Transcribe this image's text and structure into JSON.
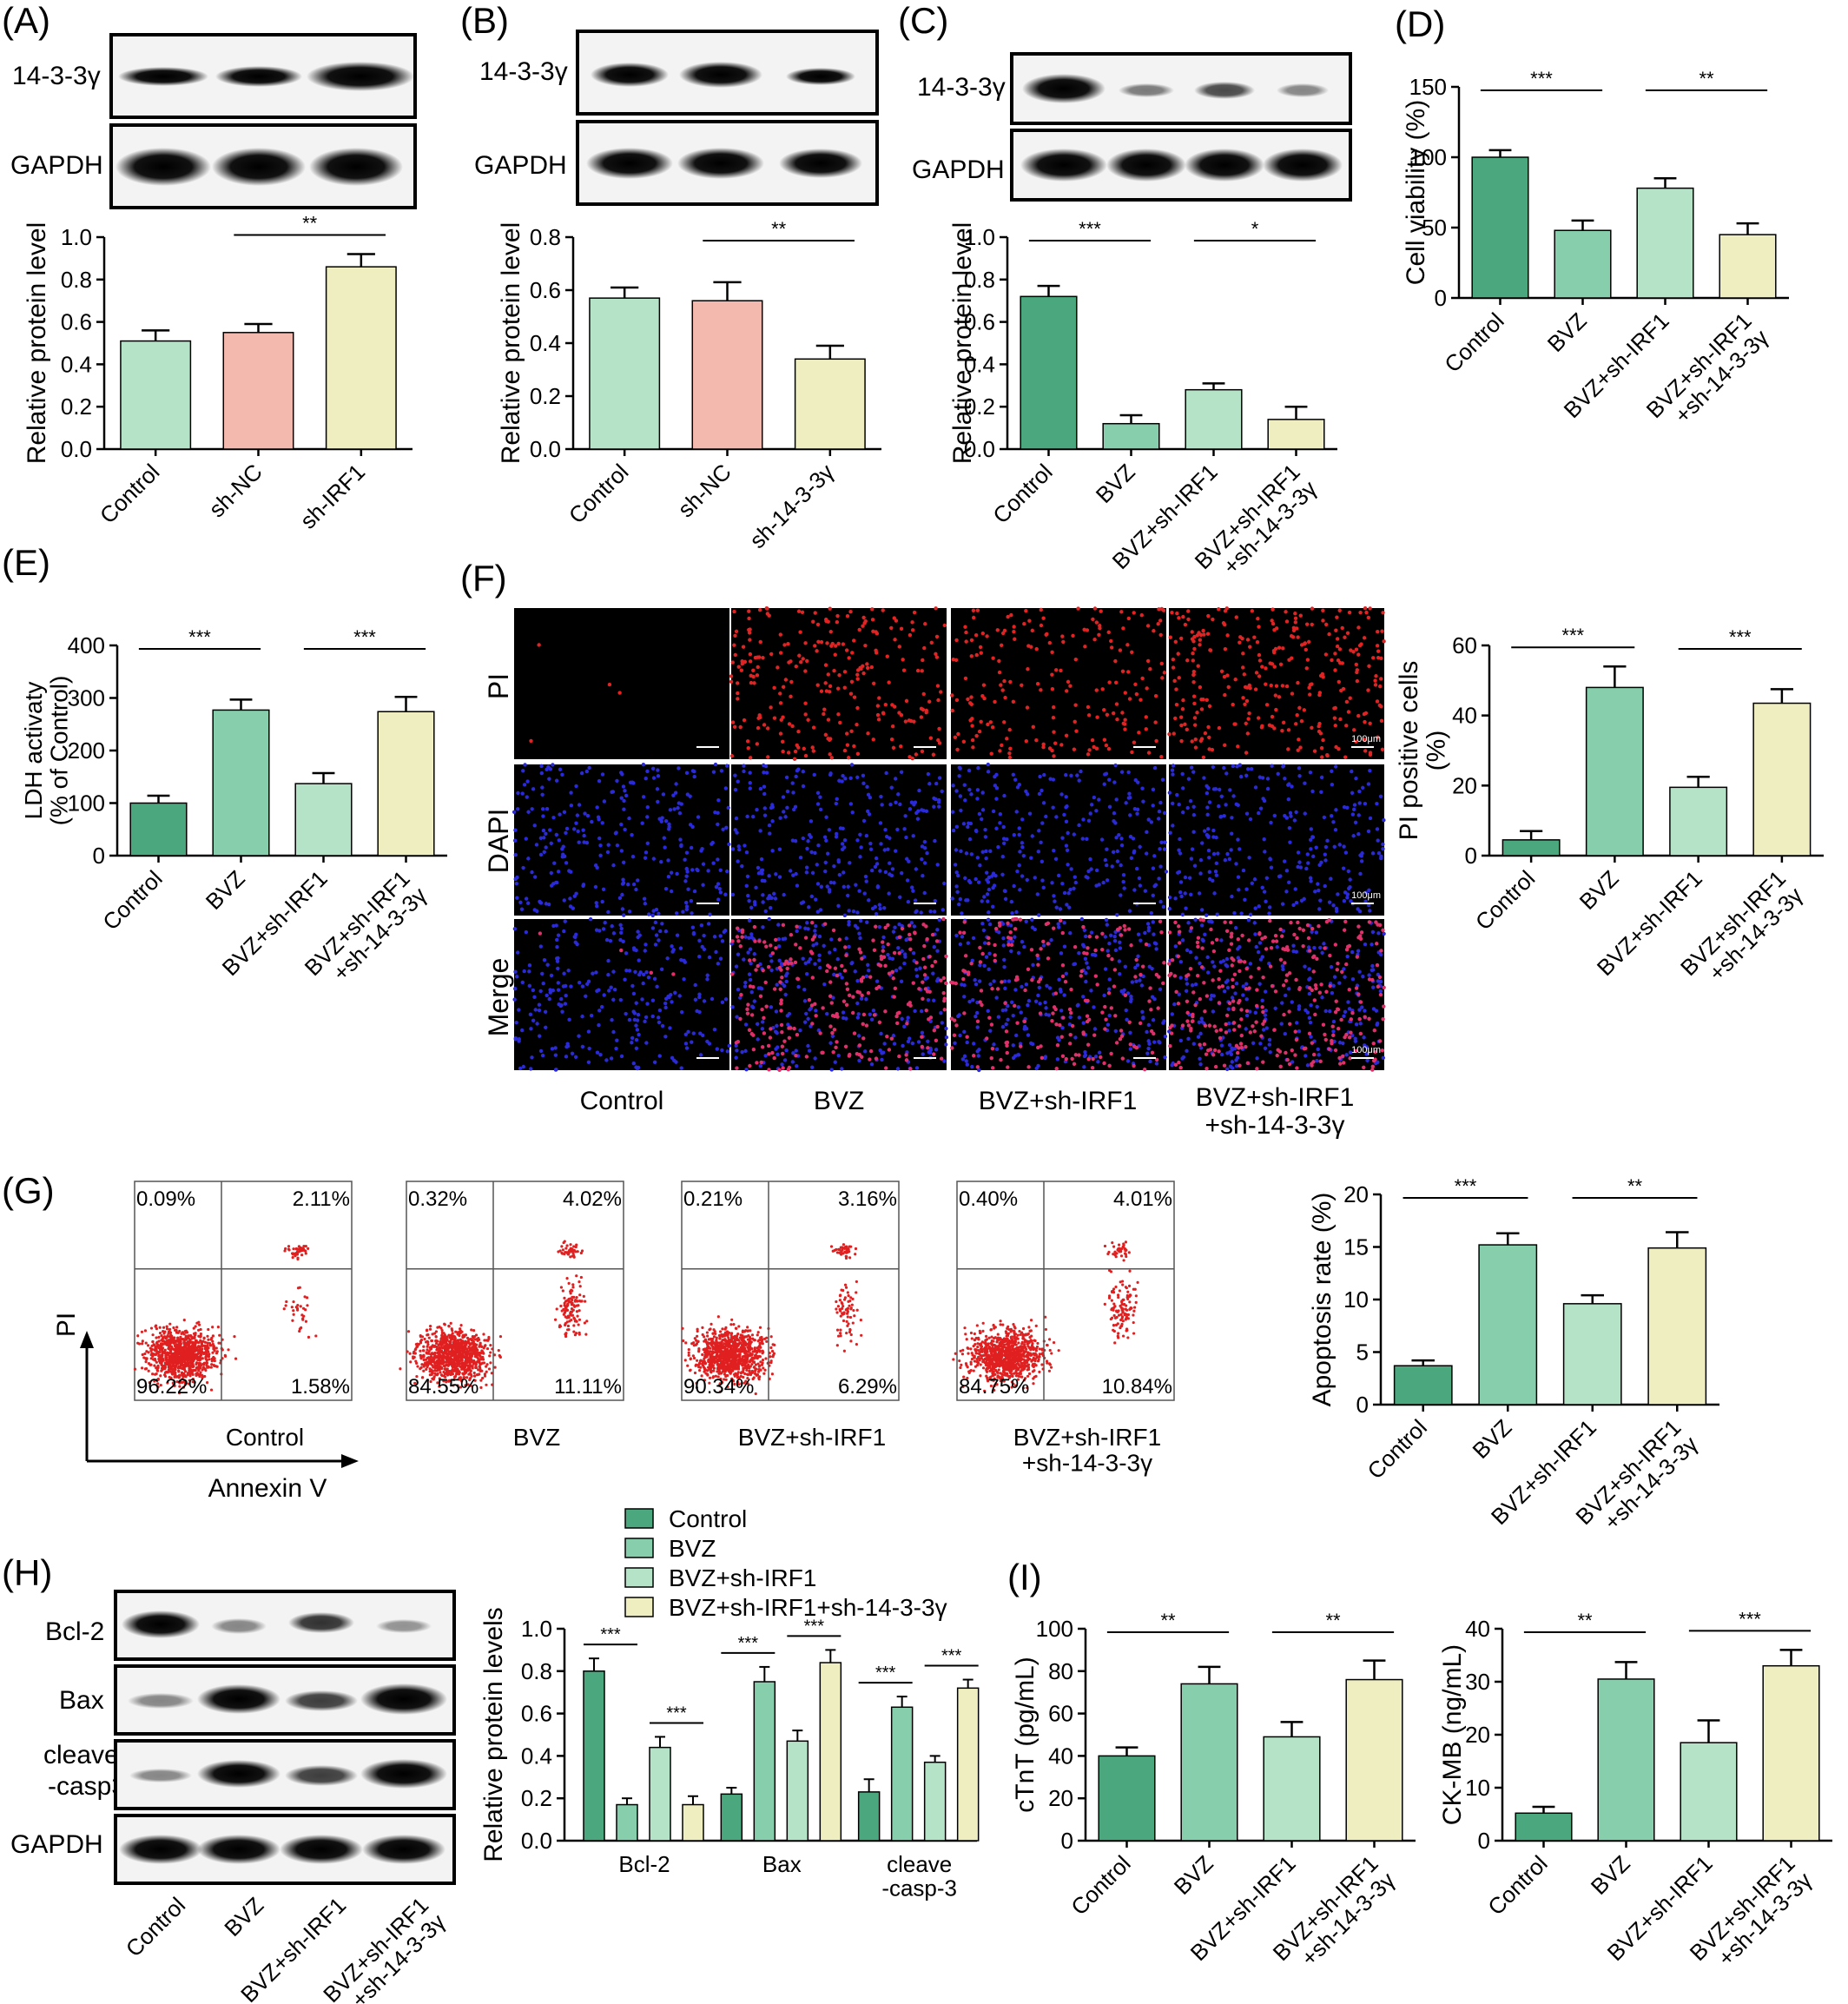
{
  "panels": {
    "A": {
      "label": "(A)",
      "blot_labels": [
        "14-3-3γ",
        "GAPDH"
      ],
      "ylabel": "Relative protein level",
      "ylim": [
        0,
        1.0
      ],
      "yticks": [
        "0.0",
        "0.2",
        "0.4",
        "0.6",
        "0.8",
        "1.0"
      ],
      "categories": [
        "Control",
        "sh-NC",
        "sh-IRF1"
      ],
      "values": [
        0.51,
        0.55,
        0.86
      ],
      "errors": [
        0.05,
        0.04,
        0.06
      ],
      "bar_colors": [
        "#b5e3c7",
        "#f3b8ae",
        "#eeeec0"
      ],
      "sig": [
        {
          "from": 1,
          "to": 2,
          "text": "**"
        }
      ]
    },
    "B": {
      "label": "(B)",
      "blot_labels": [
        "14-3-3γ",
        "GAPDH"
      ],
      "ylabel": "Relative protein level",
      "ylim": [
        0,
        0.8
      ],
      "yticks": [
        "0.0",
        "0.2",
        "0.4",
        "0.6",
        "0.8"
      ],
      "categories": [
        "Control",
        "sh-NC",
        "sh-14-3-3γ"
      ],
      "values": [
        0.57,
        0.56,
        0.34
      ],
      "errors": [
        0.04,
        0.07,
        0.05
      ],
      "bar_colors": [
        "#b5e3c7",
        "#f3b8ae",
        "#eeeec0"
      ],
      "sig": [
        {
          "from": 1,
          "to": 2,
          "text": "**"
        }
      ]
    },
    "C": {
      "label": "(C)",
      "blot_labels": [
        "14-3-3γ",
        "GAPDH"
      ],
      "ylabel": "Relative protein level",
      "ylim": [
        0,
        1.0
      ],
      "yticks": [
        "0.0",
        "0.2",
        "0.4",
        "0.6",
        "0.8",
        "1.0"
      ],
      "categories": [
        "Control",
        "BVZ",
        "BVZ+sh-IRF1",
        "BVZ+sh-IRF1\n+sh-14-3-3γ"
      ],
      "values": [
        0.72,
        0.12,
        0.28,
        0.14
      ],
      "errors": [
        0.05,
        0.04,
        0.03,
        0.06
      ],
      "bar_colors": [
        "#4aa77e",
        "#86ceac",
        "#b5e3c7",
        "#eeeec0"
      ],
      "sig": [
        {
          "from": 0,
          "to": 1,
          "text": "***"
        },
        {
          "from": 2,
          "to": 3,
          "text": "*"
        }
      ]
    },
    "D": {
      "label": "(D)",
      "ylabel": "Cell viability (%)",
      "ylim": [
        0,
        150
      ],
      "yticks": [
        "0",
        "50",
        "100",
        "150"
      ],
      "categories": [
        "Control",
        "BVZ",
        "BVZ+sh-IRF1",
        "BVZ+sh-IRF1\n+sh-14-3-3γ"
      ],
      "values": [
        100,
        48,
        78,
        45
      ],
      "errors": [
        5,
        7,
        7,
        8
      ],
      "bar_colors": [
        "#4aa77e",
        "#86ceac",
        "#b5e3c7",
        "#eeeec0"
      ],
      "sig": [
        {
          "from": 0,
          "to": 1,
          "text": "***"
        },
        {
          "from": 2,
          "to": 3,
          "text": "**"
        }
      ]
    },
    "E": {
      "label": "(E)",
      "ylabel": "LDH activaty\n(% of Control)",
      "ylim": [
        0,
        400
      ],
      "yticks": [
        "0",
        "100",
        "200",
        "300",
        "400"
      ],
      "categories": [
        "Control",
        "BVZ",
        "BVZ+sh-IRF1",
        "BVZ+sh-IRF1\n+sh-14-3-3γ"
      ],
      "values": [
        100,
        277,
        137,
        274
      ],
      "errors": [
        14,
        20,
        20,
        28
      ],
      "bar_colors": [
        "#4aa77e",
        "#86ceac",
        "#b5e3c7",
        "#eeeec0"
      ],
      "sig": [
        {
          "from": 0,
          "to": 1,
          "text": "***"
        },
        {
          "from": 2,
          "to": 3,
          "text": "***"
        }
      ]
    },
    "F": {
      "label": "(F)",
      "row_labels": [
        "PI",
        "DAPI",
        "Merge"
      ],
      "col_labels": [
        "Control",
        "BVZ",
        "BVZ+sh-IRF1",
        "BVZ+sh-IRF1\n+sh-14-3-3γ"
      ],
      "scale_bar": "100μm",
      "ylabel": "PI positive cells\n(%)",
      "ylim": [
        0,
        60
      ],
      "yticks": [
        "0",
        "20",
        "40",
        "60"
      ],
      "categories": [
        "Control",
        "BVZ",
        "BVZ+sh-IRF1",
        "BVZ+sh-IRF1\n+sh-14-3-3γ"
      ],
      "values": [
        4.5,
        48,
        19.5,
        43.5
      ],
      "errors": [
        2.5,
        6,
        3,
        4
      ],
      "bar_colors": [
        "#4aa77e",
        "#86ceac",
        "#b5e3c7",
        "#eeeec0"
      ],
      "sig": [
        {
          "from": 0,
          "to": 1,
          "text": "***"
        },
        {
          "from": 2,
          "to": 3,
          "text": "***"
        }
      ]
    },
    "G": {
      "label": "(G)",
      "axis_y": "PI",
      "axis_x": "Annexin V",
      "plots": [
        {
          "name": "Control",
          "q": [
            "0.09%",
            "2.11%",
            "96.22%",
            "1.58%"
          ]
        },
        {
          "name": "BVZ",
          "q": [
            "0.32%",
            "4.02%",
            "84.55%",
            "11.11%"
          ]
        },
        {
          "name": "BVZ+sh-IRF1",
          "q": [
            "0.21%",
            "3.16%",
            "90.34%",
            "6.29%"
          ]
        },
        {
          "name": "BVZ+sh-IRF1\n+sh-14-3-3γ",
          "q": [
            "0.40%",
            "4.01%",
            "84.75%",
            "10.84%"
          ]
        }
      ],
      "ylabel": "Apoptosis rate (%)",
      "ylim": [
        0,
        20
      ],
      "yticks": [
        "0",
        "5",
        "10",
        "15",
        "20"
      ],
      "categories": [
        "Control",
        "BVZ",
        "BVZ+sh-IRF1",
        "BVZ+sh-IRF1\n+sh-14-3-3γ"
      ],
      "values": [
        3.7,
        15.2,
        9.6,
        14.9
      ],
      "errors": [
        0.5,
        1.1,
        0.8,
        1.5
      ],
      "bar_colors": [
        "#4aa77e",
        "#86ceac",
        "#b5e3c7",
        "#eeeec0"
      ],
      "sig": [
        {
          "from": 0,
          "to": 1,
          "text": "***"
        },
        {
          "from": 2,
          "to": 3,
          "text": "**"
        }
      ]
    },
    "H": {
      "label": "(H)",
      "blot_labels": [
        "Bcl-2",
        "Bax",
        "cleaved\n-casp3",
        "GAPDH"
      ],
      "blot_lanes": [
        "Control",
        "BVZ",
        "BVZ+sh-IRF1",
        "BVZ+sh-IRF1\n+sh-14-3-3γ"
      ],
      "legend": [
        "Control",
        "BVZ",
        "BVZ+sh-IRF1",
        "BVZ+sh-IRF1+sh-14-3-3γ"
      ],
      "ylabel": "Relative protein levels",
      "ylim": [
        0,
        1.0
      ],
      "yticks": [
        "0.0",
        "0.2",
        "0.4",
        "0.6",
        "0.8",
        "1.0"
      ],
      "groups": [
        "Bcl-2",
        "Bax",
        "cleave\n-casp-3"
      ],
      "series_values": [
        [
          0.8,
          0.17,
          0.44,
          0.17
        ],
        [
          0.22,
          0.75,
          0.47,
          0.84
        ],
        [
          0.23,
          0.63,
          0.37,
          0.72
        ]
      ],
      "series_errors": [
        [
          0.06,
          0.03,
          0.05,
          0.04
        ],
        [
          0.03,
          0.07,
          0.05,
          0.06
        ],
        [
          0.06,
          0.05,
          0.03,
          0.04
        ]
      ],
      "bar_colors": [
        "#4aa77e",
        "#86ceac",
        "#b5e3c7",
        "#eeeec0"
      ],
      "sig": [
        {
          "group": 0,
          "from": 0,
          "to": 1,
          "text": "***"
        },
        {
          "group": 0,
          "from": 2,
          "to": 3,
          "text": "***"
        },
        {
          "group": 1,
          "from": 0,
          "to": 1,
          "text": "***"
        },
        {
          "group": 1,
          "from": 2,
          "to": 3,
          "text": "***"
        },
        {
          "group": 2,
          "from": 0,
          "to": 1,
          "text": "***"
        },
        {
          "group": 2,
          "from": 2,
          "to": 3,
          "text": "***"
        }
      ]
    },
    "I": {
      "label": "(I)",
      "charts": [
        {
          "ylabel": "cTnT (pg/mL)",
          "ylim": [
            0,
            100
          ],
          "yticks": [
            "0",
            "20",
            "40",
            "60",
            "80",
            "100"
          ],
          "categories": [
            "Control",
            "BVZ",
            "BVZ+sh-IRF1",
            "BVZ+sh-IRF1\n+sh-14-3-3γ"
          ],
          "values": [
            40,
            74,
            49,
            76
          ],
          "errors": [
            4,
            8,
            7,
            9
          ],
          "bar_colors": [
            "#4aa77e",
            "#86ceac",
            "#b5e3c7",
            "#eeeec0"
          ],
          "sig": [
            {
              "from": 0,
              "to": 1,
              "text": "**"
            },
            {
              "from": 2,
              "to": 3,
              "text": "**"
            }
          ]
        },
        {
          "ylabel": "CK-MB (ng/mL)",
          "ylim": [
            0,
            40
          ],
          "yticks": [
            "0",
            "10",
            "20",
            "30",
            "40"
          ],
          "categories": [
            "Control",
            "BVZ",
            "BVZ+sh-IRF1",
            "BVZ+sh-IRF1\n+sh-14-3-3γ"
          ],
          "values": [
            5.2,
            30.5,
            18.5,
            33
          ],
          "errors": [
            1.2,
            3.2,
            4.2,
            3
          ],
          "bar_colors": [
            "#4aa77e",
            "#86ceac",
            "#b5e3c7",
            "#eeeec0"
          ],
          "sig": [
            {
              "from": 0,
              "to": 1,
              "text": "**"
            },
            {
              "from": 2,
              "to": 3,
              "text": "***"
            }
          ]
        }
      ]
    }
  },
  "chart_data": [
    {
      "type": "bar",
      "title": "(A)",
      "ylabel": "Relative protein level",
      "categories": [
        "Control",
        "sh-NC",
        "sh-IRF1"
      ],
      "values": [
        0.51,
        0.55,
        0.86
      ],
      "ylim": [
        0,
        1.0
      ]
    },
    {
      "type": "bar",
      "title": "(B)",
      "ylabel": "Relative protein level",
      "categories": [
        "Control",
        "sh-NC",
        "sh-14-3-3γ"
      ],
      "values": [
        0.57,
        0.56,
        0.34
      ],
      "ylim": [
        0,
        0.8
      ]
    },
    {
      "type": "bar",
      "title": "(C)",
      "ylabel": "Relative protein level",
      "categories": [
        "Control",
        "BVZ",
        "BVZ+sh-IRF1",
        "BVZ+sh-IRF1+sh-14-3-3γ"
      ],
      "values": [
        0.72,
        0.12,
        0.28,
        0.14
      ],
      "ylim": [
        0,
        1.0
      ]
    },
    {
      "type": "bar",
      "title": "(D)",
      "ylabel": "Cell viability (%)",
      "categories": [
        "Control",
        "BVZ",
        "BVZ+sh-IRF1",
        "BVZ+sh-IRF1+sh-14-3-3γ"
      ],
      "values": [
        100,
        48,
        78,
        45
      ],
      "ylim": [
        0,
        150
      ]
    },
    {
      "type": "bar",
      "title": "(E)",
      "ylabel": "LDH activaty (% of Control)",
      "categories": [
        "Control",
        "BVZ",
        "BVZ+sh-IRF1",
        "BVZ+sh-IRF1+sh-14-3-3γ"
      ],
      "values": [
        100,
        277,
        137,
        274
      ],
      "ylim": [
        0,
        400
      ]
    },
    {
      "type": "bar",
      "title": "(F)",
      "ylabel": "PI positive cells (%)",
      "categories": [
        "Control",
        "BVZ",
        "BVZ+sh-IRF1",
        "BVZ+sh-IRF1+sh-14-3-3γ"
      ],
      "values": [
        4.5,
        48,
        19.5,
        43.5
      ],
      "ylim": [
        0,
        60
      ]
    },
    {
      "type": "bar",
      "title": "(G)",
      "ylabel": "Apoptosis rate (%)",
      "categories": [
        "Control",
        "BVZ",
        "BVZ+sh-IRF1",
        "BVZ+sh-IRF1+sh-14-3-3γ"
      ],
      "values": [
        3.7,
        15.2,
        9.6,
        14.9
      ],
      "ylim": [
        0,
        20
      ]
    },
    {
      "type": "bar",
      "title": "(H)",
      "ylabel": "Relative protein levels",
      "categories": [
        "Bcl-2",
        "Bax",
        "cleave -casp-3"
      ],
      "series": [
        {
          "name": "Control",
          "values": [
            0.8,
            0.22,
            0.23
          ]
        },
        {
          "name": "BVZ",
          "values": [
            0.17,
            0.75,
            0.63
          ]
        },
        {
          "name": "BVZ+sh-IRF1",
          "values": [
            0.44,
            0.47,
            0.37
          ]
        },
        {
          "name": "BVZ+sh-IRF1+sh-14-3-3γ",
          "values": [
            0.17,
            0.84,
            0.72
          ]
        }
      ],
      "ylim": [
        0,
        1.0
      ]
    },
    {
      "type": "bar",
      "title": "(I)",
      "ylabel": "cTnT (pg/mL)",
      "categories": [
        "Control",
        "BVZ",
        "BVZ+sh-IRF1",
        "BVZ+sh-IRF1+sh-14-3-3γ"
      ],
      "values": [
        40,
        74,
        49,
        76
      ],
      "ylim": [
        0,
        100
      ]
    },
    {
      "type": "bar",
      "title": "(I)",
      "ylabel": "CK-MB (ng/mL)",
      "categories": [
        "Control",
        "BVZ",
        "BVZ+sh-IRF1",
        "BVZ+sh-IRF1+sh-14-3-3γ"
      ],
      "values": [
        5.2,
        30.5,
        18.5,
        33
      ],
      "ylim": [
        0,
        40
      ]
    }
  ]
}
